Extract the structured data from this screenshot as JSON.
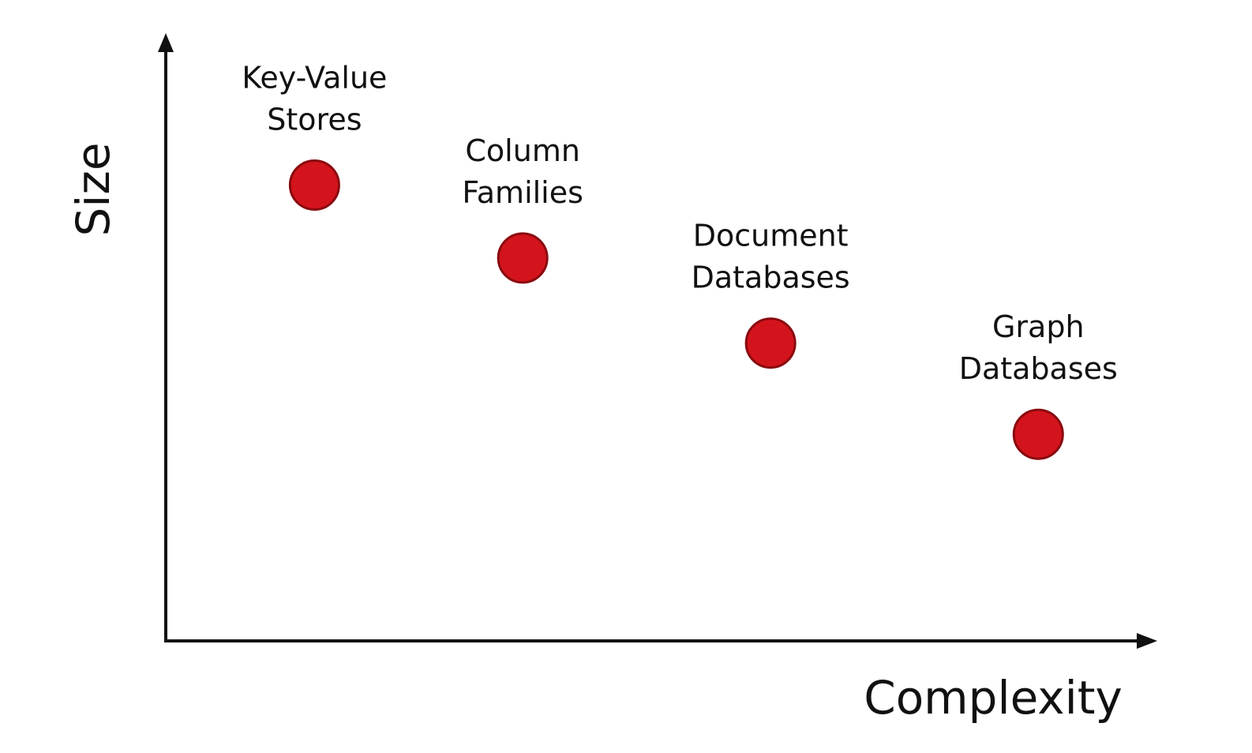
{
  "chart_data": {
    "type": "scatter",
    "title": "",
    "xlabel": "Complexity",
    "ylabel": "Size",
    "xlim": [
      0,
      10
    ],
    "ylim": [
      0,
      10
    ],
    "grid": false,
    "legend": "none",
    "colors": {
      "point_fill": "#d4141c",
      "point_stroke": "#8a0a0f",
      "axis": "#111111"
    },
    "points": [
      {
        "label_lines": [
          "Key-Value",
          "Stores"
        ],
        "x": 1.5,
        "y": 7.5
      },
      {
        "label_lines": [
          "Column",
          "Families"
        ],
        "x": 3.6,
        "y": 6.3
      },
      {
        "label_lines": [
          "Document",
          "Databases"
        ],
        "x": 6.1,
        "y": 4.9
      },
      {
        "label_lines": [
          "Graph",
          "Databases"
        ],
        "x": 8.8,
        "y": 3.4
      }
    ]
  }
}
